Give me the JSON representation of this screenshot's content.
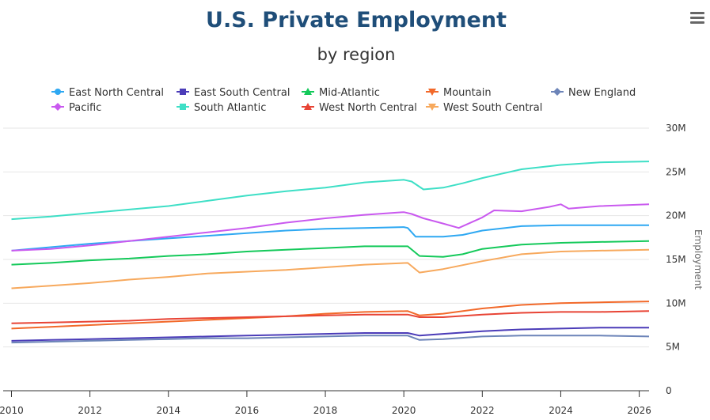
{
  "chart_data": {
    "type": "line",
    "title": "U.S. Private Employment",
    "subtitle": "by region",
    "ylabel": "Employment",
    "xlabel": "",
    "ylim": [
      0,
      30000000
    ],
    "xlim": [
      2009.95,
      2026.25
    ],
    "y_ticks": [
      0,
      5000000,
      10000000,
      15000000,
      20000000,
      25000000,
      30000000
    ],
    "y_tick_labels": [
      "0",
      "5M",
      "10M",
      "15M",
      "20M",
      "25M",
      "30M"
    ],
    "x_ticks": [
      2010,
      2012,
      2014,
      2016,
      2018,
      2020,
      2022,
      2024,
      2026
    ],
    "x_tick_labels": [
      "2010",
      "2012",
      "2014",
      "2016",
      "2018",
      "2020",
      "2022",
      "2024",
      "2026"
    ],
    "grid": "horizontal",
    "legend_position": "top",
    "series": [
      {
        "name": "East North Central",
        "color": "#2ea8f2",
        "marker": "circle",
        "points": [
          [
            2010,
            16.0
          ],
          [
            2011,
            16.4
          ],
          [
            2012,
            16.8
          ],
          [
            2013,
            17.1
          ],
          [
            2014,
            17.4
          ],
          [
            2015,
            17.7
          ],
          [
            2016,
            18.0
          ],
          [
            2017,
            18.3
          ],
          [
            2018,
            18.5
          ],
          [
            2019,
            18.6
          ],
          [
            2020.0,
            18.7
          ],
          [
            2020.1,
            18.6
          ],
          [
            2020.3,
            17.6
          ],
          [
            2020.6,
            17.6
          ],
          [
            2021,
            17.6
          ],
          [
            2021.5,
            17.8
          ],
          [
            2022,
            18.3
          ],
          [
            2023,
            18.8
          ],
          [
            2024,
            18.9
          ],
          [
            2025,
            18.9
          ],
          [
            2026.25,
            18.9
          ]
        ]
      },
      {
        "name": "East South Central",
        "color": "#4b3cb8",
        "marker": "square",
        "points": [
          [
            2010,
            5.7
          ],
          [
            2011,
            5.8
          ],
          [
            2012,
            5.9
          ],
          [
            2013,
            6.0
          ],
          [
            2014,
            6.1
          ],
          [
            2015,
            6.2
          ],
          [
            2016,
            6.3
          ],
          [
            2017,
            6.4
          ],
          [
            2018,
            6.5
          ],
          [
            2019,
            6.6
          ],
          [
            2020.1,
            6.6
          ],
          [
            2020.4,
            6.3
          ],
          [
            2021,
            6.5
          ],
          [
            2022,
            6.8
          ],
          [
            2023,
            7.0
          ],
          [
            2024,
            7.1
          ],
          [
            2025,
            7.2
          ],
          [
            2026.25,
            7.2
          ]
        ]
      },
      {
        "name": "Mid-Atlantic",
        "color": "#14c95a",
        "marker": "triangle",
        "points": [
          [
            2010,
            14.4
          ],
          [
            2011,
            14.6
          ],
          [
            2012,
            14.9
          ],
          [
            2013,
            15.1
          ],
          [
            2014,
            15.4
          ],
          [
            2015,
            15.6
          ],
          [
            2016,
            15.9
          ],
          [
            2017,
            16.1
          ],
          [
            2018,
            16.3
          ],
          [
            2019,
            16.5
          ],
          [
            2020.1,
            16.5
          ],
          [
            2020.4,
            15.4
          ],
          [
            2021,
            15.3
          ],
          [
            2021.5,
            15.6
          ],
          [
            2022,
            16.2
          ],
          [
            2023,
            16.7
          ],
          [
            2024,
            16.9
          ],
          [
            2025,
            17.0
          ],
          [
            2026.25,
            17.1
          ]
        ]
      },
      {
        "name": "Mountain",
        "color": "#f2692a",
        "marker": "triangle-down",
        "points": [
          [
            2010,
            7.1
          ],
          [
            2011,
            7.3
          ],
          [
            2012,
            7.5
          ],
          [
            2013,
            7.7
          ],
          [
            2014,
            7.9
          ],
          [
            2015,
            8.1
          ],
          [
            2016,
            8.3
          ],
          [
            2017,
            8.5
          ],
          [
            2018,
            8.8
          ],
          [
            2019,
            9.0
          ],
          [
            2020.1,
            9.1
          ],
          [
            2020.4,
            8.6
          ],
          [
            2021,
            8.8
          ],
          [
            2022,
            9.4
          ],
          [
            2023,
            9.8
          ],
          [
            2024,
            10.0
          ],
          [
            2025,
            10.1
          ],
          [
            2026.25,
            10.2
          ]
        ]
      },
      {
        "name": "New England",
        "color": "#6c84b8",
        "marker": "diamond",
        "points": [
          [
            2010,
            5.5
          ],
          [
            2011,
            5.6
          ],
          [
            2012,
            5.7
          ],
          [
            2013,
            5.8
          ],
          [
            2014,
            5.9
          ],
          [
            2015,
            6.0
          ],
          [
            2016,
            6.0
          ],
          [
            2017,
            6.1
          ],
          [
            2018,
            6.2
          ],
          [
            2019,
            6.3
          ],
          [
            2020.1,
            6.3
          ],
          [
            2020.4,
            5.8
          ],
          [
            2021,
            5.9
          ],
          [
            2022,
            6.2
          ],
          [
            2023,
            6.3
          ],
          [
            2024,
            6.3
          ],
          [
            2025,
            6.3
          ],
          [
            2026.25,
            6.2
          ]
        ]
      },
      {
        "name": "Pacific",
        "color": "#c959ef",
        "marker": "diamond",
        "points": [
          [
            2010,
            16.0
          ],
          [
            2011,
            16.2
          ],
          [
            2012,
            16.6
          ],
          [
            2013,
            17.1
          ],
          [
            2014,
            17.6
          ],
          [
            2015,
            18.1
          ],
          [
            2016,
            18.6
          ],
          [
            2017,
            19.2
          ],
          [
            2018,
            19.7
          ],
          [
            2019,
            20.1
          ],
          [
            2020.0,
            20.4
          ],
          [
            2020.2,
            20.2
          ],
          [
            2020.5,
            19.7
          ],
          [
            2021,
            19.1
          ],
          [
            2021.4,
            18.6
          ],
          [
            2022,
            19.8
          ],
          [
            2022.3,
            20.6
          ],
          [
            2023,
            20.5
          ],
          [
            2023.7,
            21.0
          ],
          [
            2024,
            21.3
          ],
          [
            2024.2,
            20.8
          ],
          [
            2025,
            21.1
          ],
          [
            2026.25,
            21.3
          ]
        ]
      },
      {
        "name": "South Atlantic",
        "color": "#3edfc6",
        "marker": "square",
        "points": [
          [
            2010,
            19.6
          ],
          [
            2011,
            19.9
          ],
          [
            2012,
            20.3
          ],
          [
            2013,
            20.7
          ],
          [
            2014,
            21.1
          ],
          [
            2015,
            21.7
          ],
          [
            2016,
            22.3
          ],
          [
            2017,
            22.8
          ],
          [
            2018,
            23.2
          ],
          [
            2019,
            23.8
          ],
          [
            2020.0,
            24.1
          ],
          [
            2020.2,
            23.9
          ],
          [
            2020.5,
            23.0
          ],
          [
            2021,
            23.2
          ],
          [
            2021.5,
            23.7
          ],
          [
            2022,
            24.3
          ],
          [
            2023,
            25.3
          ],
          [
            2024,
            25.8
          ],
          [
            2025,
            26.1
          ],
          [
            2026.25,
            26.2
          ]
        ]
      },
      {
        "name": "West North Central",
        "color": "#e84435",
        "marker": "triangle",
        "points": [
          [
            2010,
            7.7
          ],
          [
            2011,
            7.8
          ],
          [
            2012,
            7.9
          ],
          [
            2013,
            8.0
          ],
          [
            2014,
            8.2
          ],
          [
            2015,
            8.3
          ],
          [
            2016,
            8.4
          ],
          [
            2017,
            8.5
          ],
          [
            2018,
            8.6
          ],
          [
            2019,
            8.7
          ],
          [
            2020.1,
            8.7
          ],
          [
            2020.4,
            8.4
          ],
          [
            2021,
            8.4
          ],
          [
            2022,
            8.7
          ],
          [
            2023,
            8.9
          ],
          [
            2024,
            9.0
          ],
          [
            2025,
            9.0
          ],
          [
            2026.25,
            9.1
          ]
        ]
      },
      {
        "name": "West South Central",
        "color": "#f7a95d",
        "marker": "triangle-down",
        "points": [
          [
            2010,
            11.7
          ],
          [
            2011,
            12.0
          ],
          [
            2012,
            12.3
          ],
          [
            2013,
            12.7
          ],
          [
            2014,
            13.0
          ],
          [
            2015,
            13.4
          ],
          [
            2016,
            13.6
          ],
          [
            2017,
            13.8
          ],
          [
            2018,
            14.1
          ],
          [
            2019,
            14.4
          ],
          [
            2020.1,
            14.6
          ],
          [
            2020.4,
            13.5
          ],
          [
            2021,
            13.9
          ],
          [
            2022,
            14.8
          ],
          [
            2023,
            15.6
          ],
          [
            2024,
            15.9
          ],
          [
            2025,
            16.0
          ],
          [
            2026.25,
            16.1
          ]
        ]
      }
    ]
  },
  "menu_icon": "hamburger-menu-icon"
}
